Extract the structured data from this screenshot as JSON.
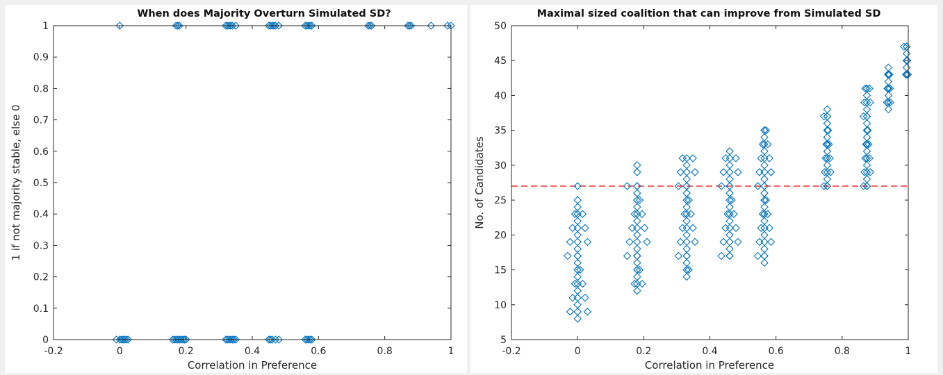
{
  "chart_data": [
    {
      "type": "scatter",
      "title": "When does Majority Overturn Simulated SD?",
      "xlabel": "Correlation in Preference",
      "ylabel": "1 if not majority stable, else 0",
      "xlim": [
        -0.2,
        1
      ],
      "ylim": [
        0,
        1
      ],
      "xticks": [
        "-0.2",
        "0",
        "0.2",
        "0.4",
        "0.6",
        "0.8",
        "1"
      ],
      "yticks": [
        "0",
        "0.1",
        "0.2",
        "0.3",
        "0.4",
        "0.5",
        "0.6",
        "0.7",
        "0.8",
        "0.9",
        "1"
      ],
      "grid": false,
      "marker": "diamond",
      "color": "#0072bd",
      "points": [
        [
          0.0,
          1
        ],
        [
          0.17,
          1
        ],
        [
          0.175,
          1
        ],
        [
          0.18,
          1
        ],
        [
          0.32,
          1
        ],
        [
          0.325,
          1
        ],
        [
          0.33,
          1
        ],
        [
          0.335,
          1
        ],
        [
          0.34,
          1
        ],
        [
          0.35,
          1
        ],
        [
          0.45,
          1
        ],
        [
          0.455,
          1
        ],
        [
          0.46,
          1
        ],
        [
          0.465,
          1
        ],
        [
          0.47,
          1
        ],
        [
          0.48,
          1
        ],
        [
          0.56,
          1
        ],
        [
          0.565,
          1
        ],
        [
          0.57,
          1
        ],
        [
          0.575,
          1
        ],
        [
          0.58,
          1
        ],
        [
          0.75,
          1
        ],
        [
          0.755,
          1
        ],
        [
          0.76,
          1
        ],
        [
          0.87,
          1
        ],
        [
          0.875,
          1
        ],
        [
          0.88,
          1
        ],
        [
          0.94,
          1
        ],
        [
          0.99,
          1
        ],
        [
          1.0,
          1
        ],
        [
          -0.01,
          0
        ],
        [
          0.0,
          0
        ],
        [
          0.005,
          0
        ],
        [
          0.01,
          0
        ],
        [
          0.015,
          0
        ],
        [
          0.02,
          0
        ],
        [
          0.025,
          0
        ],
        [
          0.16,
          0
        ],
        [
          0.165,
          0
        ],
        [
          0.17,
          0
        ],
        [
          0.175,
          0
        ],
        [
          0.18,
          0
        ],
        [
          0.185,
          0
        ],
        [
          0.19,
          0
        ],
        [
          0.195,
          0
        ],
        [
          0.2,
          0
        ],
        [
          0.32,
          0
        ],
        [
          0.325,
          0
        ],
        [
          0.33,
          0
        ],
        [
          0.335,
          0
        ],
        [
          0.34,
          0
        ],
        [
          0.345,
          0
        ],
        [
          0.35,
          0
        ],
        [
          0.45,
          0
        ],
        [
          0.455,
          0
        ],
        [
          0.46,
          0
        ],
        [
          0.47,
          0
        ],
        [
          0.48,
          0
        ],
        [
          0.56,
          0
        ],
        [
          0.565,
          0
        ],
        [
          0.57,
          0
        ],
        [
          0.575,
          0
        ],
        [
          0.58,
          0
        ]
      ]
    },
    {
      "type": "scatter",
      "title": "Maximal sized coalition that can improve from Simulated SD",
      "xlabel": "Correlation in Preference",
      "ylabel": "No. of Candidates",
      "xlim": [
        -0.2,
        1
      ],
      "ylim": [
        5,
        50
      ],
      "xticks": [
        "-0.2",
        "0",
        "0.2",
        "0.4",
        "0.6",
        "0.8",
        "1"
      ],
      "yticks": [
        "5",
        "10",
        "15",
        "20",
        "25",
        "30",
        "35",
        "40",
        "45",
        "50"
      ],
      "grid": false,
      "marker": "diamond",
      "color": "#0072bd",
      "reference_line": {
        "y": 27,
        "color": "#ff0000",
        "style": "dashed"
      },
      "clusters": [
        {
          "x": 0.0,
          "spread": 0.03,
          "ymin": 8,
          "ymax": 24,
          "extra": [
            27,
            25
          ]
        },
        {
          "x": 0.18,
          "spread": 0.03,
          "ymin": 12,
          "ymax": 27,
          "extra": [
            30,
            29
          ]
        },
        {
          "x": 0.33,
          "spread": 0.025,
          "ymin": 14,
          "ymax": 31,
          "extra": []
        },
        {
          "x": 0.46,
          "spread": 0.025,
          "ymin": 17,
          "ymax": 32,
          "extra": []
        },
        {
          "x": 0.565,
          "spread": 0.02,
          "ymin": 16,
          "ymax": 35,
          "extra": []
        },
        {
          "x": 0.755,
          "spread": 0.01,
          "ymin": 27,
          "ymax": 38,
          "extra": []
        },
        {
          "x": 0.875,
          "spread": 0.01,
          "ymin": 27,
          "ymax": 41,
          "extra": []
        },
        {
          "x": 0.94,
          "spread": 0.006,
          "ymin": 38,
          "ymax": 44,
          "extra": []
        },
        {
          "x": 0.995,
          "spread": 0.008,
          "ymin": 43,
          "ymax": 47,
          "extra": []
        }
      ]
    }
  ]
}
